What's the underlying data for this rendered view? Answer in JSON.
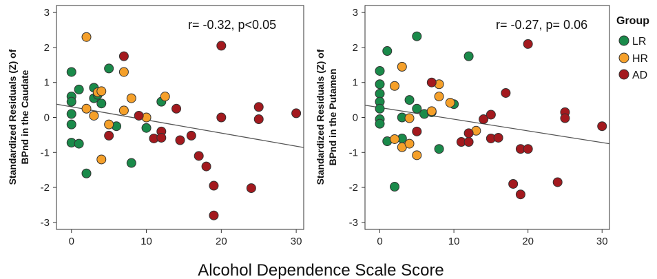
{
  "chart_data": [
    {
      "type": "scatter",
      "annotation": "r= -0.32, p<0.05",
      "ylabel_line1": "Standardized Residuals (Z) of",
      "ylabel_line2": "BPnd in the Caudate",
      "xlim": [
        -2,
        31
      ],
      "ylim": [
        -3.2,
        3.2
      ],
      "xticks": [
        0,
        10,
        20,
        30
      ],
      "yticks": [
        -3,
        -2,
        -1,
        0,
        1,
        2,
        3
      ],
      "fit_line": {
        "x": [
          -2,
          31
        ],
        "y": [
          0.38,
          -0.86
        ]
      },
      "series": [
        {
          "name": "LR",
          "points": [
            [
              0,
              1.3
            ],
            [
              0,
              0.6
            ],
            [
              0,
              0.45
            ],
            [
              0,
              0.1
            ],
            [
              0,
              -0.2
            ],
            [
              0,
              -0.72
            ],
            [
              1,
              0.8
            ],
            [
              1,
              -0.75
            ],
            [
              2,
              -1.6
            ],
            [
              3,
              0.85
            ],
            [
              3,
              0.55
            ],
            [
              3.5,
              0.65
            ],
            [
              4,
              0.4
            ],
            [
              5,
              1.4
            ],
            [
              6,
              -0.25
            ],
            [
              8,
              -1.3
            ],
            [
              10,
              -0.3
            ],
            [
              12,
              0.45
            ]
          ]
        },
        {
          "name": "HR",
          "points": [
            [
              2,
              2.3
            ],
            [
              2,
              0.25
            ],
            [
              3,
              0.05
            ],
            [
              3.5,
              0.72
            ],
            [
              4,
              0.75
            ],
            [
              4,
              -1.2
            ],
            [
              5,
              -0.2
            ],
            [
              7,
              1.3
            ],
            [
              7,
              0.2
            ],
            [
              8,
              0.55
            ],
            [
              10,
              0.0
            ],
            [
              12.5,
              0.6
            ]
          ]
        },
        {
          "name": "AD",
          "points": [
            [
              5,
              -0.52
            ],
            [
              7,
              1.75
            ],
            [
              9,
              0.05
            ],
            [
              11,
              -0.6
            ],
            [
              12,
              -0.4
            ],
            [
              12,
              -0.58
            ],
            [
              14,
              0.25
            ],
            [
              14.5,
              -0.65
            ],
            [
              16,
              -0.52
            ],
            [
              17,
              -1.1
            ],
            [
              18,
              -1.4
            ],
            [
              19,
              -1.95
            ],
            [
              19,
              -2.8
            ],
            [
              20,
              2.05
            ],
            [
              20,
              0.0
            ],
            [
              24,
              -2.02
            ],
            [
              25,
              0.3
            ],
            [
              25,
              -0.05
            ],
            [
              30,
              0.12
            ]
          ]
        }
      ]
    },
    {
      "type": "scatter",
      "annotation": "r= -0.27, p= 0.06",
      "ylabel_line1": "Standardized Residuals (Z) of",
      "ylabel_line2": "BPnd in the Putamen",
      "xlim": [
        -2,
        31
      ],
      "ylim": [
        -3.2,
        3.2
      ],
      "xticks": [
        0,
        10,
        20,
        30
      ],
      "yticks": [
        -3,
        -2,
        -1,
        0,
        1,
        2,
        3
      ],
      "fit_line": {
        "x": [
          -2,
          31
        ],
        "y": [
          0.35,
          -0.75
        ]
      },
      "series": [
        {
          "name": "LR",
          "points": [
            [
              0,
              1.33
            ],
            [
              0,
              0.95
            ],
            [
              0,
              0.68
            ],
            [
              0,
              0.45
            ],
            [
              0,
              0.25
            ],
            [
              0,
              -0.05
            ],
            [
              0,
              -0.18
            ],
            [
              1,
              1.9
            ],
            [
              1,
              -0.68
            ],
            [
              2,
              -1.98
            ],
            [
              3,
              0.0
            ],
            [
              3,
              -0.6
            ],
            [
              4,
              0.5
            ],
            [
              5,
              2.32
            ],
            [
              5,
              0.25
            ],
            [
              6,
              0.1
            ],
            [
              7,
              0.15
            ],
            [
              10,
              0.38
            ],
            [
              8,
              -0.9
            ],
            [
              12,
              1.75
            ]
          ]
        },
        {
          "name": "HR",
          "points": [
            [
              2,
              0.9
            ],
            [
              2,
              -0.62
            ],
            [
              3,
              1.45
            ],
            [
              3,
              -0.85
            ],
            [
              4,
              -0.02
            ],
            [
              4,
              -0.75
            ],
            [
              5,
              -1.08
            ],
            [
              7,
              0.18
            ],
            [
              8,
              0.95
            ],
            [
              8,
              0.6
            ],
            [
              9.5,
              0.42
            ],
            [
              13,
              -0.38
            ]
          ]
        },
        {
          "name": "AD",
          "points": [
            [
              5,
              -0.4
            ],
            [
              7,
              1.0
            ],
            [
              11,
              -0.7
            ],
            [
              12,
              -0.7
            ],
            [
              12,
              -0.45
            ],
            [
              14,
              -0.05
            ],
            [
              15,
              0.08
            ],
            [
              15,
              -0.6
            ],
            [
              16,
              -0.58
            ],
            [
              17,
              0.7
            ],
            [
              18,
              -1.9
            ],
            [
              19,
              -0.9
            ],
            [
              19,
              -2.2
            ],
            [
              20,
              2.1
            ],
            [
              20,
              -0.9
            ],
            [
              24,
              -1.85
            ],
            [
              25,
              0.15
            ],
            [
              25,
              -0.02
            ],
            [
              30,
              -0.25
            ]
          ]
        }
      ]
    }
  ],
  "legend": {
    "title": "Group",
    "entries": [
      {
        "name": "LR",
        "color": "#1a8a4a"
      },
      {
        "name": "HR",
        "color": "#f5a02a"
      },
      {
        "name": "AD",
        "color": "#a3191e"
      }
    ],
    "placement": "right"
  },
  "xlabel": "Alcohol Dependence Scale Score",
  "colors": {
    "LR": "#1a8a4a",
    "HR": "#f5a02a",
    "AD": "#a3191e",
    "fit_line": "#555555"
  }
}
